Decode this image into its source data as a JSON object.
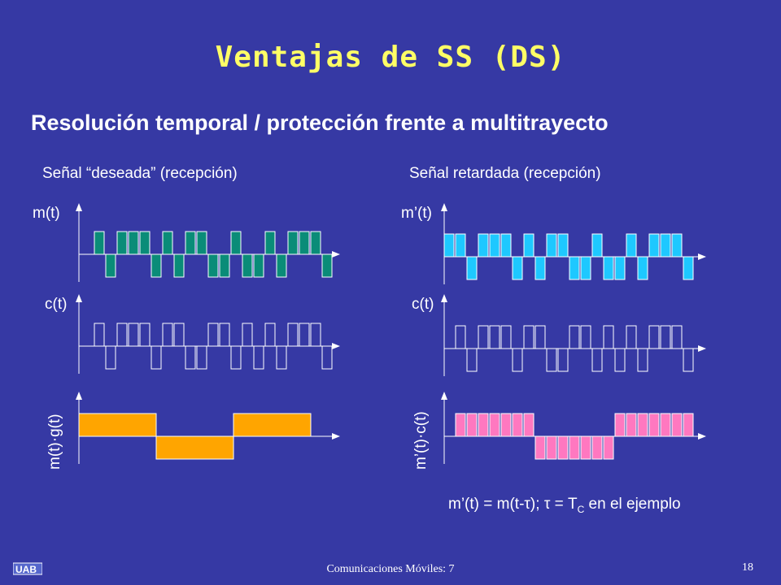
{
  "slide": {
    "title": "Ventajas de SS (DS)",
    "subtitle": "Resolución temporal / protección frente a multitrayecto",
    "left_heading": "Señal “deseada” (recepción)",
    "right_heading": "Señal retardada (recepción)",
    "footer": "Comunicaciones Móviles: 7",
    "page_number": "18"
  },
  "labels": {
    "left_m": "m(t)",
    "left_c": "c(t)",
    "left_product": "m(t)·g(t)",
    "right_m": "m’(t)",
    "right_c": "c(t)",
    "right_product": "m’(t)·c(t)"
  },
  "formula": {
    "part1": "m’(t) = m(t-",
    "tau1": "τ",
    "part2": "); ",
    "tau2": "τ",
    "part3": " = T",
    "sub": "C",
    "part4": " en el ejemplo"
  },
  "colors": {
    "background": "#3639a4",
    "title": "#ffff66",
    "m_green": "#0a8c78",
    "c_outline": "#ffffff",
    "product_orange": "#ffa500",
    "m_cyan": "#1ec8ff",
    "product_pink": "#ff78c0"
  },
  "signals": {
    "chip_sequence": [
      1,
      0,
      1,
      1,
      1,
      0,
      1,
      1,
      0,
      0,
      1,
      1,
      0,
      1,
      0,
      1,
      0,
      1,
      1,
      1,
      0
    ],
    "data_bits": [
      1,
      0,
      1
    ],
    "chips_per_bit": 7,
    "delay_chips": 1
  }
}
